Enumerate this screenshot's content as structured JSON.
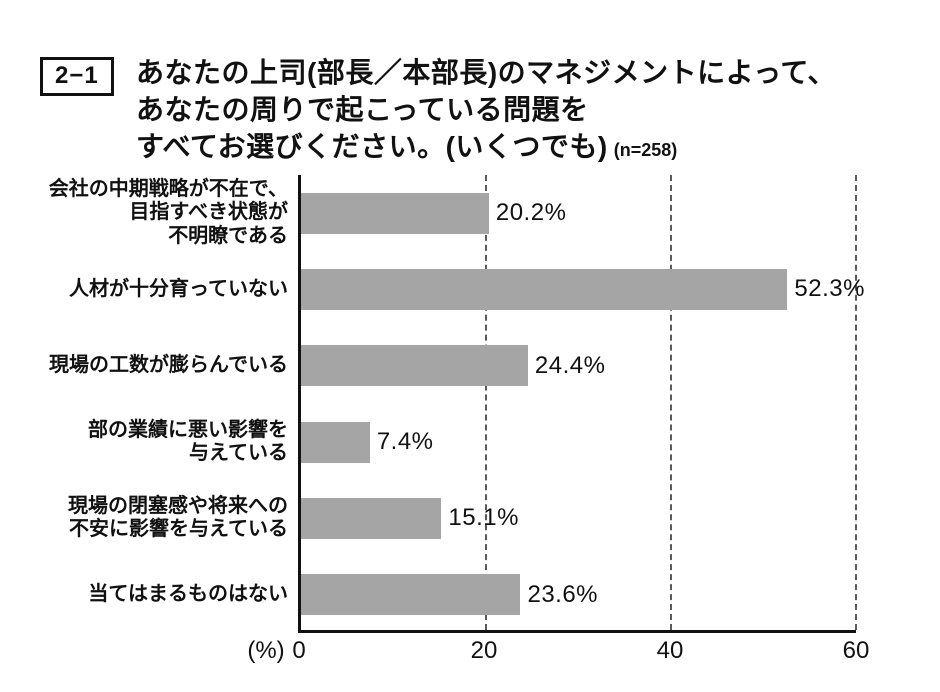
{
  "header": {
    "tag": "2−1",
    "title_lines": [
      "あなたの上司(部長／本部長)のマネジメントによって、",
      "あなたの周りで起こっている問題を",
      "すべてお選びください。(いくつでも)"
    ],
    "sample": "(n=258)"
  },
  "chart_data": {
    "type": "bar",
    "orientation": "horizontal",
    "title": "あなたの上司(部長／本部長)のマネジメントによって、あなたの周りで起こっている問題をすべてお選びください。(いくつでも)",
    "sample_size": "n=258",
    "categories": [
      "会社の中期戦略が不在で、\n目指すべき状態が\n不明瞭である",
      "人材が十分育っていない",
      "現場の工数が膨らんでいる",
      "部の業績に悪い影響を\n与えている",
      "現場の閉塞感や将来への\n不安に影響を与えている",
      "当てはまるものはない"
    ],
    "values": [
      20.2,
      52.3,
      24.4,
      7.4,
      15.1,
      23.6
    ],
    "value_labels": [
      "20.2%",
      "52.3%",
      "24.4%",
      "7.4%",
      "15.1%",
      "23.6%"
    ],
    "xlabel": "(%)",
    "xlim": [
      0,
      60
    ],
    "x_ticks": [
      "0",
      "20",
      "40",
      "60"
    ],
    "grid": "vertical dashed lines at 20, 40, 60",
    "bar_color": "#a5a5a5",
    "axis_color": "#111111"
  }
}
